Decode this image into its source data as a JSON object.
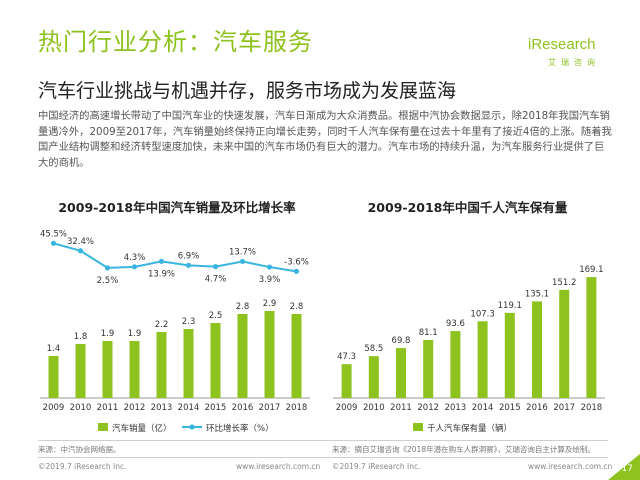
{
  "header": {
    "title": "热门行业分析：汽车服务",
    "subtitle": "汽车行业挑战与机遇并存，服务市场成为发展蓝海",
    "logo_text": "iResearch",
    "logo_sub": "艾瑞咨询"
  },
  "body_text": "中国经济的高速增长带动了中国汽车业的快速发展，汽车日渐成为大众消费品。根据中汽协会数据显示，除2018年我国汽车销量遇冷外，2009至2017年，汽车销量始终保持正向增长走势，同时千人汽车保有量在过去十年里有了接近4倍的上涨。随着我国产业结构调整和经济转型速度加快，未来中国的汽车市场仍有巨大的潜力。汽车市场的持续升温，为汽车服务行业提供了巨大的商机。",
  "chart_data": [
    {
      "type": "bar",
      "title": "2009-2018年中国汽车销量及环比增长率",
      "categories": [
        "2009",
        "2010",
        "2011",
        "2012",
        "2013",
        "2014",
        "2015",
        "2016",
        "2017",
        "2018"
      ],
      "series": [
        {
          "name": "汽车销量（亿）",
          "type": "bar",
          "values": [
            1.4,
            1.8,
            1.9,
            1.9,
            2.2,
            2.3,
            2.5,
            2.8,
            2.9,
            2.8
          ],
          "labels": [
            "1.4",
            "1.8",
            "1.9",
            "1.9",
            "2.2",
            "2.3",
            "2.5",
            "2.8",
            "2.9",
            "2.8"
          ]
        },
        {
          "name": "环比增长率（%）",
          "type": "line",
          "values": [
            45.5,
            32.4,
            2.5,
            4.3,
            13.9,
            6.9,
            4.7,
            13.7,
            3.9,
            -3.6
          ],
          "labels": [
            "45.5%",
            "32.4%",
            "2.5%",
            "4.3%",
            "13.9%",
            "6.9%",
            "4.7%",
            "13.7%",
            "3.9%",
            "-3.6%"
          ]
        }
      ],
      "legend": [
        "汽车销量（亿）",
        "环比增长率（%）"
      ],
      "legend_position": "bottom",
      "bar_ylim": [
        0,
        3.5
      ],
      "line_ylim": [
        -10,
        60
      ],
      "grid": false
    },
    {
      "type": "bar",
      "title": "2009-2018年中国千人汽车保有量",
      "categories": [
        "2009",
        "2010",
        "2011",
        "2012",
        "2013",
        "2014",
        "2015",
        "2016",
        "2017",
        "2018"
      ],
      "series": [
        {
          "name": "千人汽车保有量（辆）",
          "values": [
            47.3,
            58.5,
            69.8,
            81.1,
            93.6,
            107.3,
            119.1,
            135.1,
            151.2,
            169.1
          ],
          "labels": [
            "47.3",
            "58.5",
            "69.8",
            "81.1",
            "93.6",
            "107.3",
            "119.1",
            "135.1",
            "151.2",
            "169.1"
          ]
        }
      ],
      "legend": [
        "千人汽车保有量（辆）"
      ],
      "legend_position": "bottom",
      "ylim": [
        0,
        200
      ],
      "grid": false
    }
  ],
  "sources": {
    "left": "来源：中汽协会网络据。",
    "right": "来源：摘自艾瑞咨询《2018年潜在购车人群洞察》，艾瑞咨询自主计算及绘制。"
  },
  "footer": {
    "copyright": "©2019.7 iResearch Inc.",
    "url": "www.iresearch.com.cn",
    "page": "17"
  },
  "colors": {
    "accent_green": "#8dc21f",
    "line_blue": "#39b5e0"
  }
}
